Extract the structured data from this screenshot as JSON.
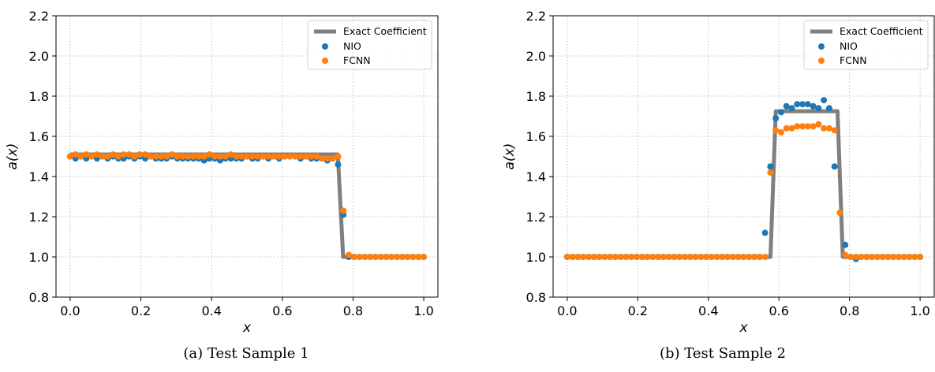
{
  "colors": {
    "exact": "#7f7f7f",
    "nio": "#1f77b4",
    "fcnn": "#ff7f0e",
    "grid": "#b0b0b0"
  },
  "chart_data": [
    {
      "type": "scatter",
      "caption": "(a) Test Sample 1",
      "xlabel": "x",
      "ylabel": "a(x)",
      "xlim": [
        -0.04,
        1.04
      ],
      "ylim": [
        0.8,
        2.2
      ],
      "xticks": [
        0.0,
        0.2,
        0.4,
        0.6,
        0.8,
        1.0
      ],
      "xtick_labels": [
        "0.0",
        "0.2",
        "0.4",
        "0.6",
        "0.8",
        "1.0"
      ],
      "yticks": [
        0.8,
        1.0,
        1.2,
        1.4,
        1.6,
        1.8,
        2.0,
        2.2
      ],
      "ytick_labels": [
        "0.8",
        "1.0",
        "1.2",
        "1.4",
        "1.6",
        "1.8",
        "2.0",
        "2.2"
      ],
      "grid": true,
      "legend": "top-right",
      "series": [
        {
          "name": "Exact Coefficient",
          "kind": "line",
          "x": [
            0.0,
            0.757,
            0.772,
            1.0
          ],
          "y": [
            1.51,
            1.51,
            1.0,
            1.0
          ]
        },
        {
          "name": "NIO",
          "kind": "scatter",
          "x": [
            0.0,
            0.0152,
            0.0303,
            0.0455,
            0.0606,
            0.0758,
            0.0909,
            0.1061,
            0.1212,
            0.1364,
            0.1515,
            0.1667,
            0.1818,
            0.197,
            0.2121,
            0.2273,
            0.2424,
            0.2576,
            0.2727,
            0.2879,
            0.303,
            0.3182,
            0.3333,
            0.3485,
            0.3636,
            0.3788,
            0.3939,
            0.4091,
            0.4242,
            0.4394,
            0.4545,
            0.4697,
            0.4848,
            0.5,
            0.5152,
            0.5303,
            0.5455,
            0.5606,
            0.5758,
            0.5909,
            0.6061,
            0.6212,
            0.6364,
            0.6515,
            0.6667,
            0.6818,
            0.697,
            0.7121,
            0.7273,
            0.7424,
            0.7576,
            0.7727,
            0.7879,
            0.803,
            0.8182,
            0.8333,
            0.8485,
            0.8636,
            0.8788,
            0.8939,
            0.9091,
            0.9242,
            0.9394,
            0.9545,
            0.9697,
            0.9848,
            1.0
          ],
          "y": [
            1.5,
            1.49,
            1.5,
            1.49,
            1.5,
            1.49,
            1.5,
            1.49,
            1.5,
            1.49,
            1.49,
            1.5,
            1.49,
            1.5,
            1.49,
            1.5,
            1.49,
            1.49,
            1.49,
            1.5,
            1.49,
            1.49,
            1.49,
            1.49,
            1.49,
            1.48,
            1.49,
            1.49,
            1.48,
            1.49,
            1.49,
            1.49,
            1.49,
            1.5,
            1.49,
            1.49,
            1.5,
            1.49,
            1.5,
            1.49,
            1.5,
            1.5,
            1.5,
            1.49,
            1.5,
            1.49,
            1.49,
            1.49,
            1.48,
            1.49,
            1.46,
            1.21,
            1.0,
            1.0,
            1.0,
            1.0,
            1.0,
            1.0,
            1.0,
            1.0,
            1.0,
            1.0,
            1.0,
            1.0,
            1.0,
            1.0,
            1.0
          ]
        },
        {
          "name": "FCNN",
          "kind": "scatter",
          "x": [
            0.0,
            0.0152,
            0.0303,
            0.0455,
            0.0606,
            0.0758,
            0.0909,
            0.1061,
            0.1212,
            0.1364,
            0.1515,
            0.1667,
            0.1818,
            0.197,
            0.2121,
            0.2273,
            0.2424,
            0.2576,
            0.2727,
            0.2879,
            0.303,
            0.3182,
            0.3333,
            0.3485,
            0.3636,
            0.3788,
            0.3939,
            0.4091,
            0.4242,
            0.4394,
            0.4545,
            0.4697,
            0.4848,
            0.5,
            0.5152,
            0.5303,
            0.5455,
            0.5606,
            0.5758,
            0.5909,
            0.6061,
            0.6212,
            0.6364,
            0.6515,
            0.6667,
            0.6818,
            0.697,
            0.7121,
            0.7273,
            0.7424,
            0.7576,
            0.7727,
            0.7879,
            0.803,
            0.8182,
            0.8333,
            0.8485,
            0.8636,
            0.8788,
            0.8939,
            0.9091,
            0.9242,
            0.9394,
            0.9545,
            0.9697,
            0.9848,
            1.0
          ],
          "y": [
            1.5,
            1.51,
            1.5,
            1.51,
            1.5,
            1.51,
            1.5,
            1.5,
            1.51,
            1.5,
            1.51,
            1.51,
            1.5,
            1.51,
            1.51,
            1.5,
            1.5,
            1.5,
            1.5,
            1.51,
            1.5,
            1.5,
            1.5,
            1.5,
            1.5,
            1.5,
            1.51,
            1.5,
            1.5,
            1.5,
            1.51,
            1.5,
            1.5,
            1.5,
            1.5,
            1.5,
            1.5,
            1.5,
            1.5,
            1.5,
            1.5,
            1.5,
            1.5,
            1.5,
            1.5,
            1.5,
            1.5,
            1.49,
            1.49,
            1.49,
            1.5,
            1.23,
            1.01,
            1.0,
            1.0,
            1.0,
            1.0,
            1.0,
            1.0,
            1.0,
            1.0,
            1.0,
            1.0,
            1.0,
            1.0,
            1.0,
            1.0
          ]
        }
      ]
    },
    {
      "type": "scatter",
      "caption": "(b) Test Sample 2",
      "xlabel": "x",
      "ylabel": "a(x)",
      "xlim": [
        -0.04,
        1.04
      ],
      "ylim": [
        0.8,
        2.2
      ],
      "xticks": [
        0.0,
        0.2,
        0.4,
        0.6,
        0.8,
        1.0
      ],
      "xtick_labels": [
        "0.0",
        "0.2",
        "0.4",
        "0.6",
        "0.8",
        "1.0"
      ],
      "yticks": [
        0.8,
        1.0,
        1.2,
        1.4,
        1.6,
        1.8,
        2.0,
        2.2
      ],
      "ytick_labels": [
        "0.8",
        "1.0",
        "1.2",
        "1.4",
        "1.6",
        "1.8",
        "2.0",
        "2.2"
      ],
      "grid": true,
      "legend": "top-right",
      "series": [
        {
          "name": "Exact Coefficient",
          "kind": "line",
          "x": [
            0.0,
            0.576,
            0.591,
            0.766,
            0.781,
            1.0
          ],
          "y": [
            1.0,
            1.0,
            1.725,
            1.725,
            1.0,
            1.0
          ]
        },
        {
          "name": "NIO",
          "kind": "scatter",
          "x": [
            0.0,
            0.0152,
            0.0303,
            0.0455,
            0.0606,
            0.0758,
            0.0909,
            0.1061,
            0.1212,
            0.1364,
            0.1515,
            0.1667,
            0.1818,
            0.197,
            0.2121,
            0.2273,
            0.2424,
            0.2576,
            0.2727,
            0.2879,
            0.303,
            0.3182,
            0.3333,
            0.3485,
            0.3636,
            0.3788,
            0.3939,
            0.4091,
            0.4242,
            0.4394,
            0.4545,
            0.4697,
            0.4848,
            0.5,
            0.5152,
            0.5303,
            0.5455,
            0.5606,
            0.5758,
            0.5909,
            0.6061,
            0.6212,
            0.6364,
            0.6515,
            0.6667,
            0.6818,
            0.697,
            0.7121,
            0.7273,
            0.7424,
            0.7576,
            0.7727,
            0.7879,
            0.803,
            0.8182,
            0.8333,
            0.8485,
            0.8636,
            0.8788,
            0.8939,
            0.9091,
            0.9242,
            0.9394,
            0.9545,
            0.9697,
            0.9848,
            1.0
          ],
          "y": [
            1.0,
            1.0,
            1.0,
            1.0,
            1.0,
            1.0,
            1.0,
            1.0,
            1.0,
            1.0,
            1.0,
            1.0,
            1.0,
            1.0,
            1.0,
            1.0,
            1.0,
            1.0,
            1.0,
            1.0,
            1.0,
            1.0,
            1.0,
            1.0,
            1.0,
            1.0,
            1.0,
            1.0,
            1.0,
            1.0,
            1.0,
            1.0,
            1.0,
            1.0,
            1.0,
            1.0,
            1.0,
            1.12,
            1.45,
            1.69,
            1.72,
            1.75,
            1.74,
            1.76,
            1.76,
            1.76,
            1.75,
            1.74,
            1.78,
            1.74,
            1.45,
            1.22,
            1.06,
            1.0,
            0.99,
            1.0,
            1.0,
            1.0,
            1.0,
            1.0,
            1.0,
            1.0,
            1.0,
            1.0,
            1.0,
            1.0,
            1.0
          ]
        },
        {
          "name": "FCNN",
          "kind": "scatter",
          "x": [
            0.0,
            0.0152,
            0.0303,
            0.0455,
            0.0606,
            0.0758,
            0.0909,
            0.1061,
            0.1212,
            0.1364,
            0.1515,
            0.1667,
            0.1818,
            0.197,
            0.2121,
            0.2273,
            0.2424,
            0.2576,
            0.2727,
            0.2879,
            0.303,
            0.3182,
            0.3333,
            0.3485,
            0.3636,
            0.3788,
            0.3939,
            0.4091,
            0.4242,
            0.4394,
            0.4545,
            0.4697,
            0.4848,
            0.5,
            0.5152,
            0.5303,
            0.5455,
            0.5606,
            0.5758,
            0.5909,
            0.6061,
            0.6212,
            0.6364,
            0.6515,
            0.6667,
            0.6818,
            0.697,
            0.7121,
            0.7273,
            0.7424,
            0.7576,
            0.7727,
            0.7879,
            0.803,
            0.8182,
            0.8333,
            0.8485,
            0.8636,
            0.8788,
            0.8939,
            0.9091,
            0.9242,
            0.9394,
            0.9545,
            0.9697,
            0.9848,
            1.0
          ],
          "y": [
            1.0,
            1.0,
            1.0,
            1.0,
            1.0,
            1.0,
            1.0,
            1.0,
            1.0,
            1.0,
            1.0,
            1.0,
            1.0,
            1.0,
            1.0,
            1.0,
            1.0,
            1.0,
            1.0,
            1.0,
            1.0,
            1.0,
            1.0,
            1.0,
            1.0,
            1.0,
            1.0,
            1.0,
            1.0,
            1.0,
            1.0,
            1.0,
            1.0,
            1.0,
            1.0,
            1.0,
            1.0,
            1.0,
            1.42,
            1.63,
            1.62,
            1.64,
            1.64,
            1.65,
            1.65,
            1.65,
            1.65,
            1.66,
            1.64,
            1.64,
            1.63,
            1.22,
            1.01,
            1.0,
            1.0,
            1.0,
            1.0,
            1.0,
            1.0,
            1.0,
            1.0,
            1.0,
            1.0,
            1.0,
            1.0,
            1.0,
            1.0
          ]
        }
      ]
    }
  ]
}
